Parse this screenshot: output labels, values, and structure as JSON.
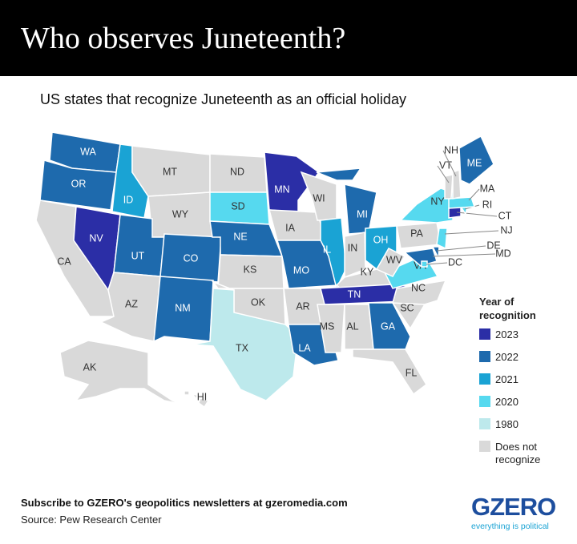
{
  "header": {
    "title": "Who observes Juneteenth?"
  },
  "subtitle": "US states that recognize Juneteenth as an official holiday",
  "legend": {
    "title": "Year of recognition",
    "items": [
      {
        "label": "2023",
        "color": "#2b2ea6"
      },
      {
        "label": "2022",
        "color": "#1e6aad"
      },
      {
        "label": "2021",
        "color": "#1aa3d4"
      },
      {
        "label": "2020",
        "color": "#56d9ef"
      },
      {
        "label": "1980",
        "color": "#bde9ec"
      },
      {
        "label": "Does not recognize",
        "color": "#d9d9d9"
      }
    ]
  },
  "states": [
    {
      "abbr": "WA",
      "recognized": "2022"
    },
    {
      "abbr": "OR",
      "recognized": "2022"
    },
    {
      "abbr": "CA",
      "recognized": null
    },
    {
      "abbr": "NV",
      "recognized": "2023"
    },
    {
      "abbr": "ID",
      "recognized": "2021"
    },
    {
      "abbr": "MT",
      "recognized": null
    },
    {
      "abbr": "WY",
      "recognized": null
    },
    {
      "abbr": "UT",
      "recognized": "2022"
    },
    {
      "abbr": "CO",
      "recognized": "2022"
    },
    {
      "abbr": "AZ",
      "recognized": null
    },
    {
      "abbr": "NM",
      "recognized": "2022"
    },
    {
      "abbr": "ND",
      "recognized": null
    },
    {
      "abbr": "SD",
      "recognized": "2020"
    },
    {
      "abbr": "NE",
      "recognized": "2022"
    },
    {
      "abbr": "KS",
      "recognized": null
    },
    {
      "abbr": "OK",
      "recognized": null
    },
    {
      "abbr": "TX",
      "recognized": "1980"
    },
    {
      "abbr": "MN",
      "recognized": "2023"
    },
    {
      "abbr": "IA",
      "recognized": null
    },
    {
      "abbr": "MO",
      "recognized": "2022"
    },
    {
      "abbr": "AR",
      "recognized": null
    },
    {
      "abbr": "LA",
      "recognized": "2022"
    },
    {
      "abbr": "WI",
      "recognized": null
    },
    {
      "abbr": "IL",
      "recognized": "2021"
    },
    {
      "abbr": "MI",
      "recognized": "2022"
    },
    {
      "abbr": "IN",
      "recognized": null
    },
    {
      "abbr": "OH",
      "recognized": "2021"
    },
    {
      "abbr": "KY",
      "recognized": null
    },
    {
      "abbr": "TN",
      "recognized": "2023"
    },
    {
      "abbr": "MS",
      "recognized": null
    },
    {
      "abbr": "AL",
      "recognized": null
    },
    {
      "abbr": "GA",
      "recognized": "2022"
    },
    {
      "abbr": "FL",
      "recognized": null
    },
    {
      "abbr": "SC",
      "recognized": null
    },
    {
      "abbr": "NC",
      "recognized": null
    },
    {
      "abbr": "VA",
      "recognized": "2020"
    },
    {
      "abbr": "WV",
      "recognized": null
    },
    {
      "abbr": "PA",
      "recognized": null
    },
    {
      "abbr": "NY",
      "recognized": "2020"
    },
    {
      "abbr": "NJ",
      "recognized": "2020"
    },
    {
      "abbr": "DE",
      "recognized": "2022"
    },
    {
      "abbr": "MD",
      "recognized": "2022"
    },
    {
      "abbr": "DC",
      "recognized": "2020"
    },
    {
      "abbr": "CT",
      "recognized": "2023"
    },
    {
      "abbr": "RI",
      "recognized": "2020"
    },
    {
      "abbr": "MA",
      "recognized": "2020"
    },
    {
      "abbr": "VT",
      "recognized": null
    },
    {
      "abbr": "NH",
      "recognized": null
    },
    {
      "abbr": "ME",
      "recognized": "2022"
    },
    {
      "abbr": "AK",
      "recognized": null
    },
    {
      "abbr": "HI",
      "recognized": null
    }
  ],
  "footer": {
    "subscribe": "Subscribe to GZERO's geopolitics newsletters at gzeromedia.com",
    "source": "Source: Pew Research Center",
    "logo": "GZERO",
    "tagline": "everything is political"
  }
}
